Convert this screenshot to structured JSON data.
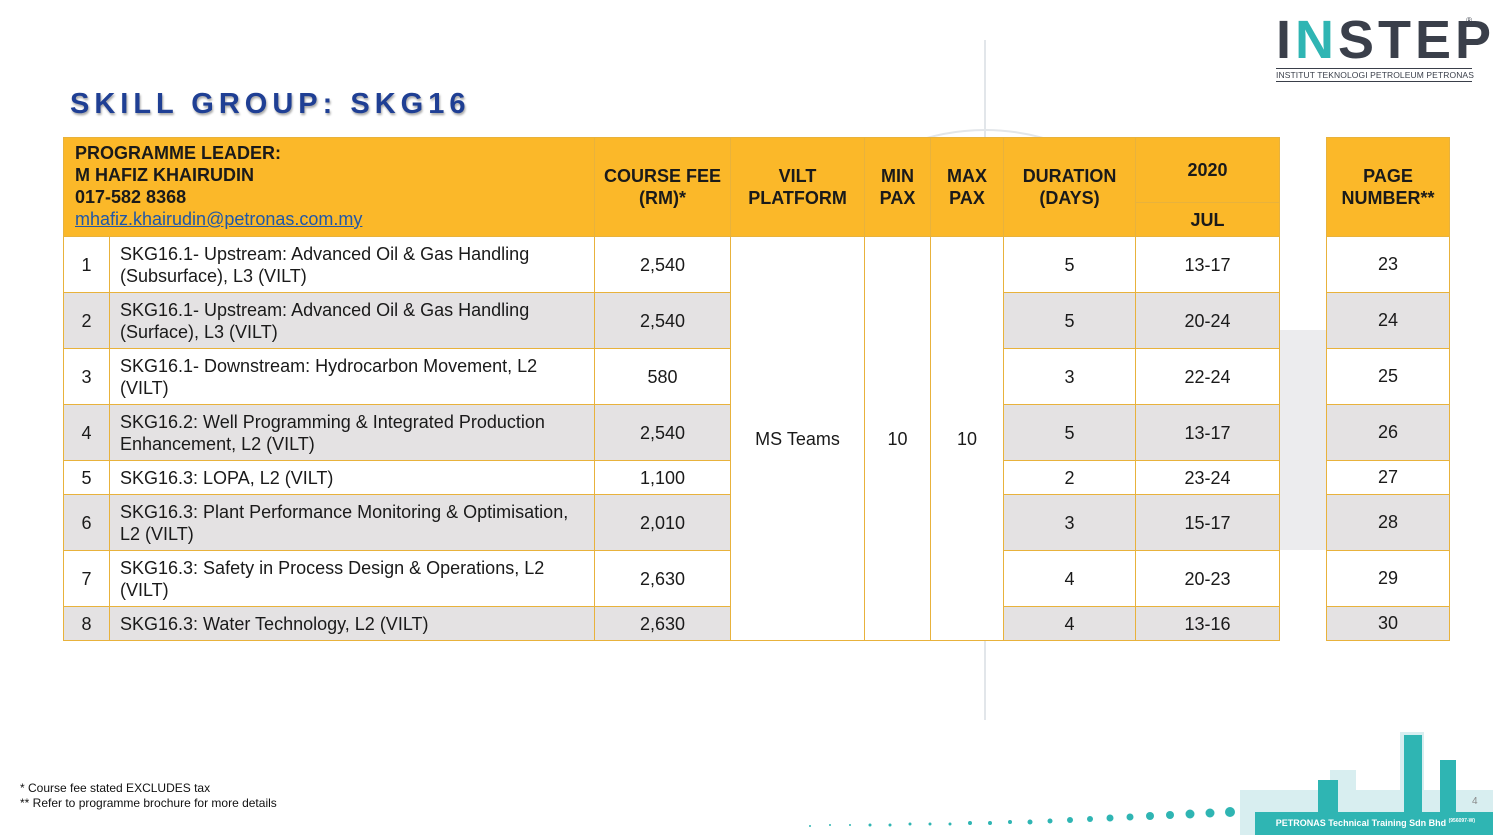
{
  "logo": {
    "word_start": "I",
    "word_accent": "N",
    "word_end": "STEP",
    "registered": "®",
    "subtitle": "INSTITUT TEKNOLOGI PETROLEUM PETRONAS"
  },
  "title": "SKILL GROUP: SKG16",
  "header": {
    "leader_label": "PROGRAMME LEADER:",
    "leader_name": "M HAFIZ KHAIRUDIN",
    "leader_phone": "017-582 8368",
    "leader_email": "mhafiz.khairudin@petronas.com.my",
    "fee": "COURSE FEE (RM)*",
    "platform": "VILT PLATFORM",
    "min_pax": "MIN PAX",
    "max_pax": "MAX PAX",
    "duration": "DURATION (DAYS)",
    "year": "2020",
    "month": "JUL",
    "page_number": "PAGE NUMBER**"
  },
  "shared": {
    "platform": "MS Teams",
    "min_pax": "10",
    "max_pax": "10"
  },
  "courses": [
    {
      "no": "1",
      "name": "SKG16.1- Upstream: Advanced Oil & Gas Handling (Subsurface), L3 (VILT)",
      "fee": "2,540",
      "days": "5",
      "dates": "13-17",
      "page": "23"
    },
    {
      "no": "2",
      "name": "SKG16.1- Upstream: Advanced Oil & Gas Handling (Surface), L3 (VILT)",
      "fee": "2,540",
      "days": "5",
      "dates": "20-24",
      "page": "24"
    },
    {
      "no": "3",
      "name": "SKG16.1- Downstream: Hydrocarbon Movement, L2 (VILT)",
      "fee": "580",
      "days": "3",
      "dates": "22-24",
      "page": "25"
    },
    {
      "no": "4",
      "name": "SKG16.2: Well Programming & Integrated Production Enhancement, L2 (VILT)",
      "fee": "2,540",
      "days": "5",
      "dates": "13-17",
      "page": "26"
    },
    {
      "no": "5",
      "name": "SKG16.3: LOPA, L2 (VILT)",
      "fee": "1,100",
      "days": "2",
      "dates": "23-24",
      "page": "27"
    },
    {
      "no": "6",
      "name": "SKG16.3: Plant Performance Monitoring & Optimisation, L2 (VILT)",
      "fee": "2,010",
      "days": "3",
      "dates": "15-17",
      "page": "28"
    },
    {
      "no": "7",
      "name": "SKG16.3: Safety in Process Design & Operations, L2 (VILT)",
      "fee": "2,630",
      "days": "4",
      "dates": "20-23",
      "page": "29"
    },
    {
      "no": "8",
      "name": "SKG16.3: Water Technology, L2 (VILT)",
      "fee": "2,630",
      "days": "4",
      "dates": "13-16",
      "page": "30"
    }
  ],
  "notes": [
    "* Course fee stated EXCLUDES tax",
    "** Refer to programme brochure for more details"
  ],
  "footer": {
    "company": "PETRONAS Technical Training Sdn Bhd",
    "reg": "(956097-W)"
  },
  "slide_number": "4",
  "colors": {
    "header": "#fbb829",
    "title": "#1f3f94",
    "accent": "#2fb5b3",
    "row_alt": "#e4e2e3"
  }
}
